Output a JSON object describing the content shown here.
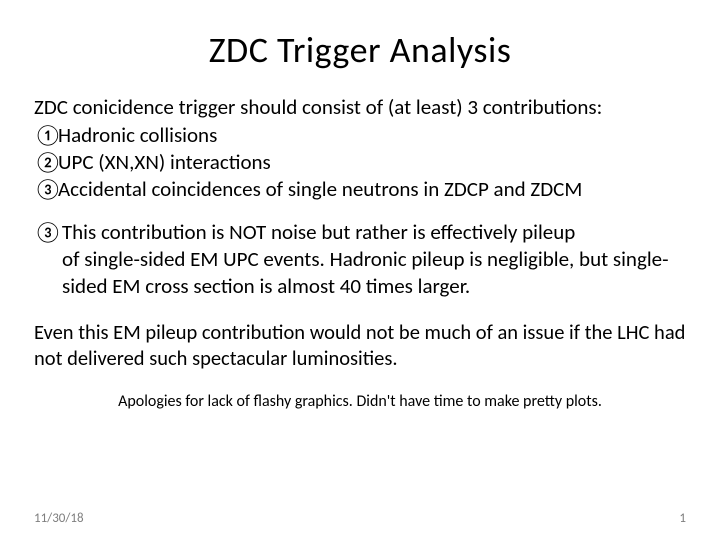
{
  "title": "ZDC Trigger Analysis",
  "intro": "ZDC conicidence trigger should consist of (at least) 3 contributions:",
  "items": [
    {
      "num": "①",
      "text": "Hadronic collisions"
    },
    {
      "num": "②",
      "text": "UPC (XN,XN) interactions"
    },
    {
      "num": "③",
      "text": "Accidental coincidences of single neutrons in ZDCP and ZDCM"
    }
  ],
  "para3_lead_num": "③",
  "para3_lead": "This contribution is NOT noise but rather is effectively pileup",
  "para3_rest": "of single-sided EM UPC events. Hadronic pileup is negligible, but single-sided EM cross section is almost 40 times larger.",
  "para4": "Even this EM pileup contribution would not be much of an issue if the LHC had not delivered such spectacular luminosities.",
  "apology": "Apologies for lack of flashy graphics. Didn't have time to make pretty plots.",
  "footer_date": "11/30/18",
  "footer_page": "1",
  "colors": {
    "background": "#ffffff",
    "text": "#000000",
    "footer": "#7f7f7f"
  },
  "typography": {
    "title_fontsize": 36,
    "body_fontsize": 21,
    "apology_fontsize": 16,
    "footer_fontsize": 13,
    "font_family": "Calibri"
  }
}
